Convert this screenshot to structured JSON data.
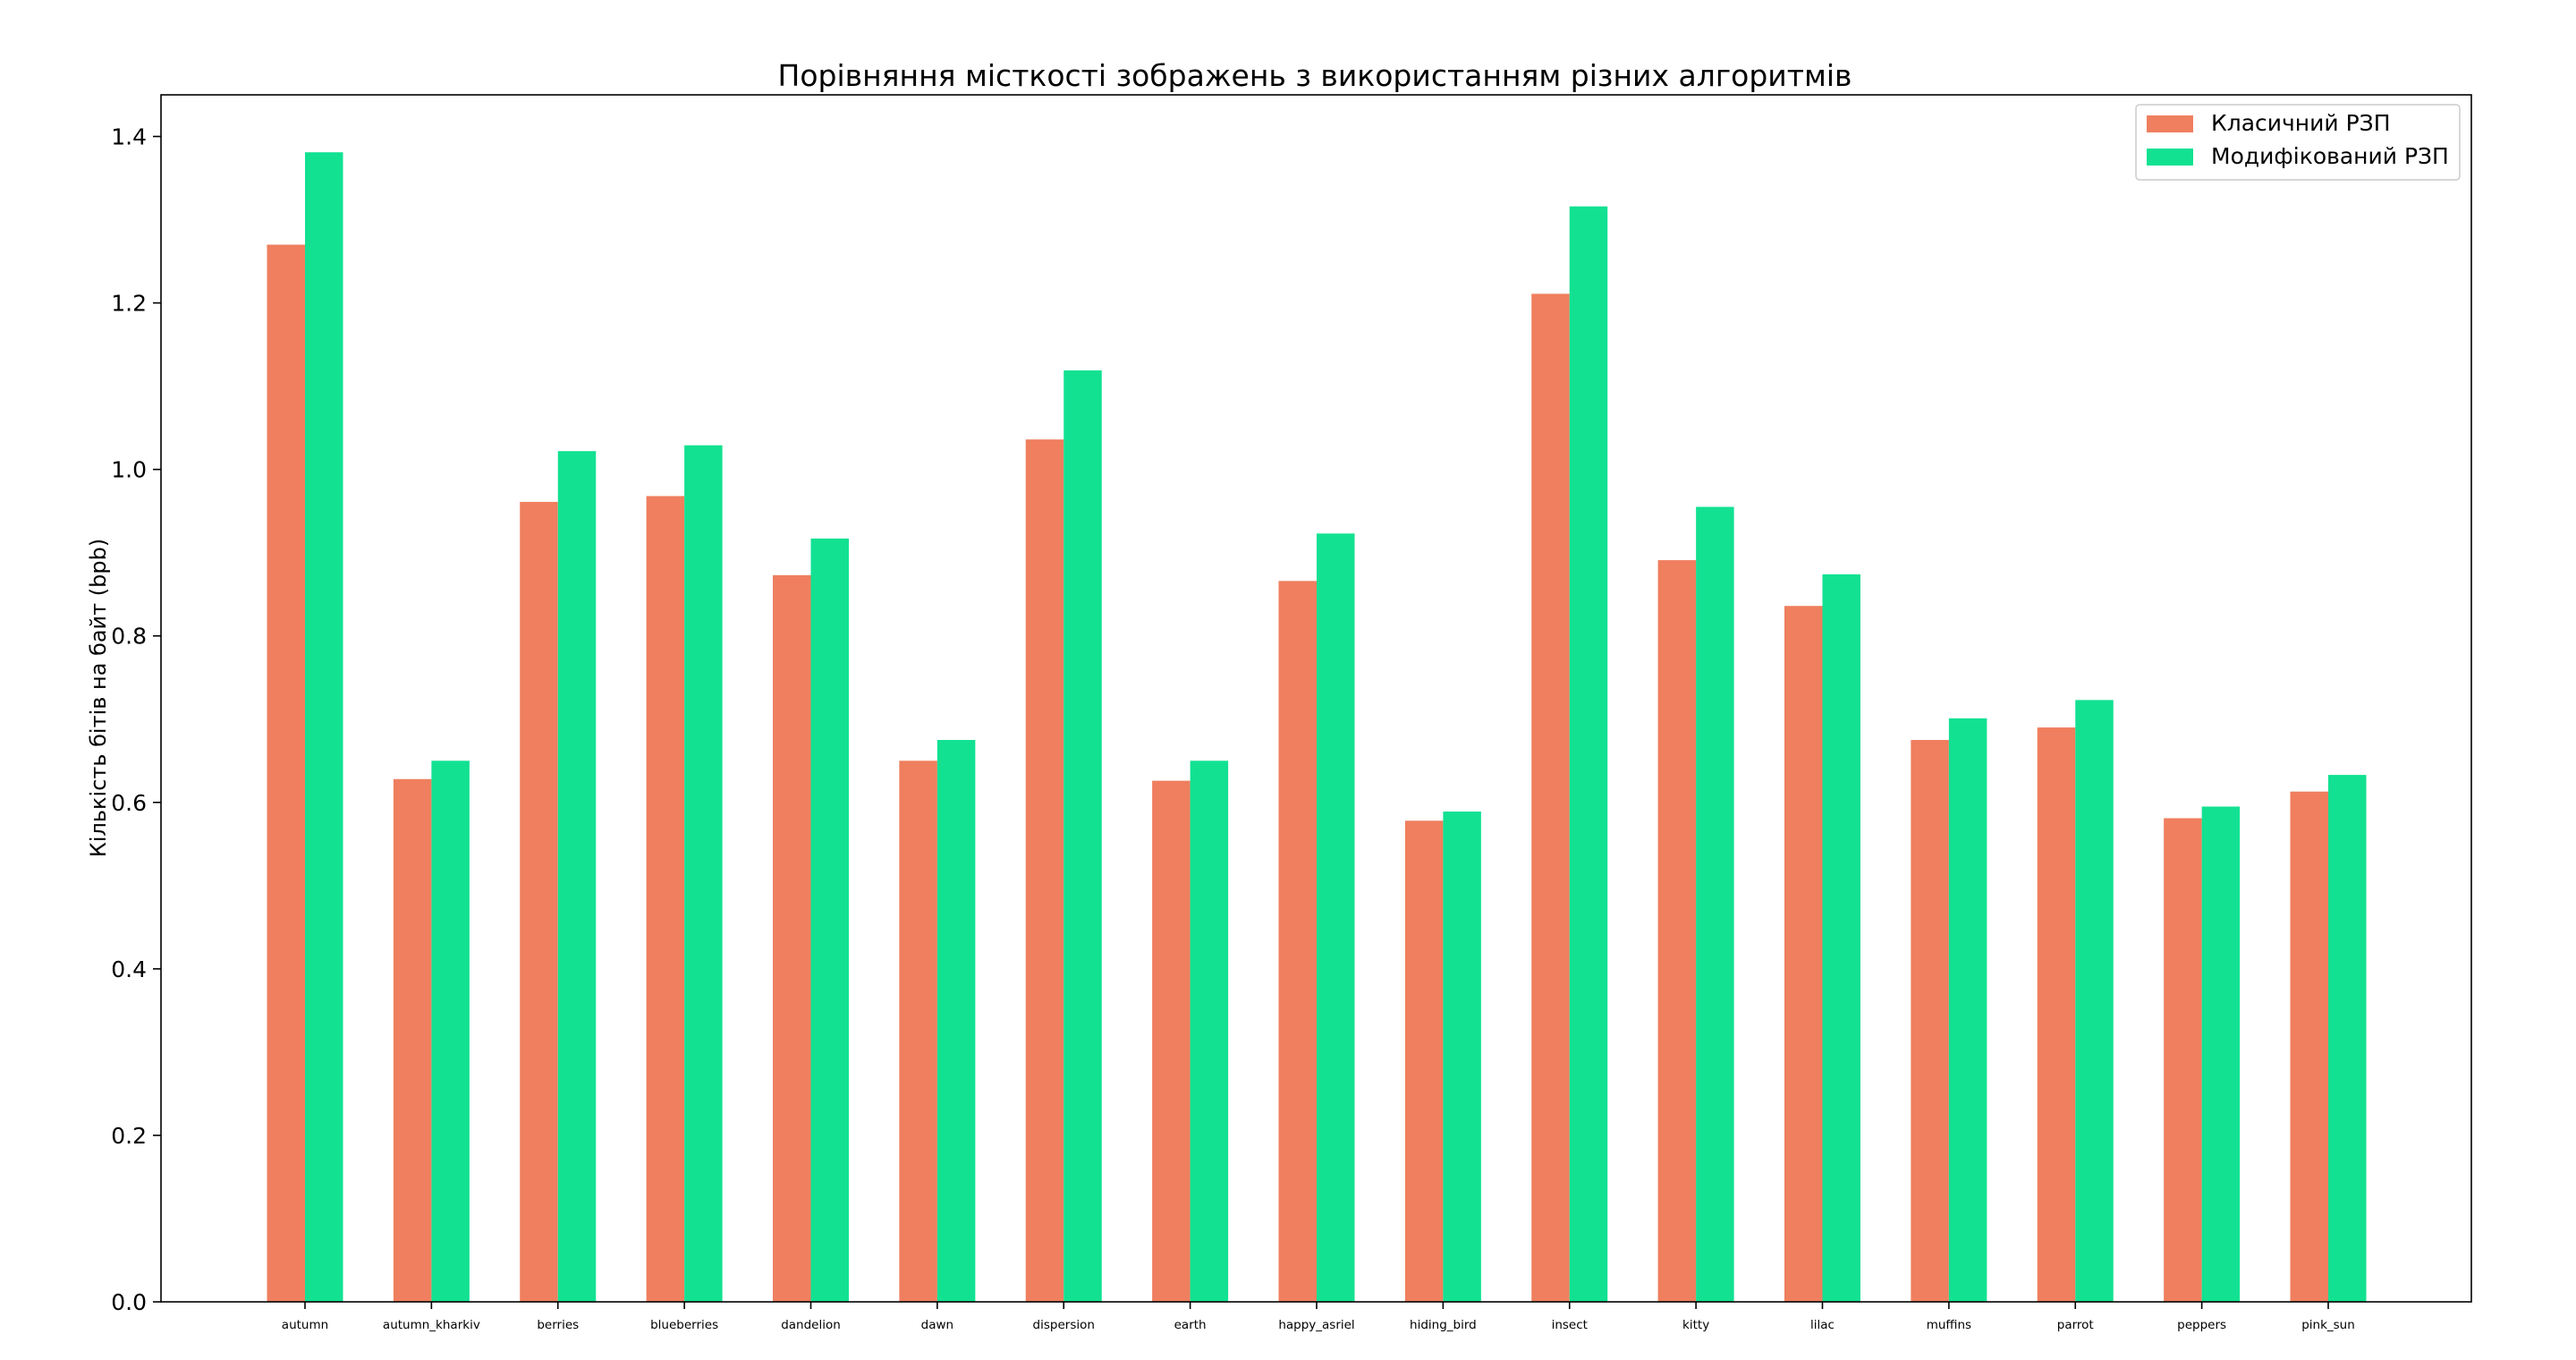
{
  "chart_data": {
    "type": "bar",
    "title": "Порівняння місткості зображень з використанням різних алгоритмів",
    "xlabel": "",
    "ylabel": "Кількість бітів на байт (bpb)",
    "ylim": [
      0,
      1.45
    ],
    "yticks": [
      0.0,
      0.2,
      0.4,
      0.6,
      0.8,
      1.0,
      1.2,
      1.4
    ],
    "grid": false,
    "legend_position": "top-right",
    "categories": [
      "autumn",
      "autumn_kharkiv",
      "berries",
      "blueberries",
      "dandelion",
      "dawn",
      "dispersion",
      "earth",
      "happy_asriel",
      "hiding_bird",
      "insect",
      "kitty",
      "lilac",
      "muffins",
      "parrot",
      "peppers",
      "pink_sun"
    ],
    "series": [
      {
        "name": "Класичний РЗП",
        "color": "#ef7f5e",
        "values": [
          1.27,
          0.628,
          0.961,
          0.968,
          0.873,
          0.65,
          1.036,
          0.626,
          0.866,
          0.578,
          1.211,
          0.891,
          0.836,
          0.675,
          0.69,
          0.581,
          0.613
        ]
      },
      {
        "name": "Модифікований РЗП",
        "color": "#12e192",
        "values": [
          1.381,
          0.65,
          1.022,
          1.029,
          0.917,
          0.675,
          1.119,
          0.65,
          0.923,
          0.589,
          1.316,
          0.955,
          0.874,
          0.701,
          0.723,
          0.595,
          0.633
        ]
      }
    ]
  }
}
